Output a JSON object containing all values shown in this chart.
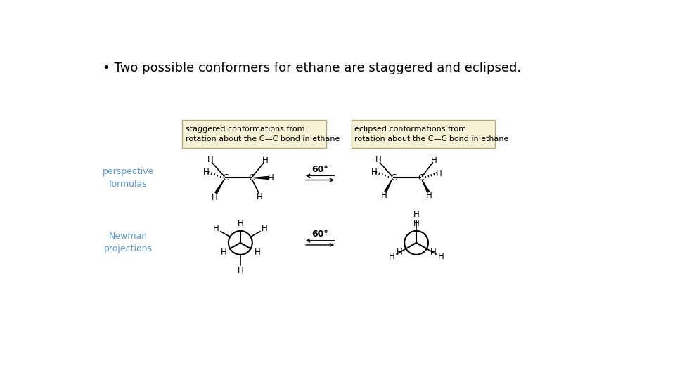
{
  "title_text": "Two possible conformers for ethane are staggered and eclipsed.",
  "title_bullet": "•",
  "bg_color": "#ffffff",
  "blue_color": "#5b9bd5",
  "box_bg": "#f5f2d5",
  "box_edge": "#b8a878",
  "box1_text": "staggered conformations from\nrotation about the C—C bond in ethane",
  "box2_text": "eclipsed conformations from\nrotation about the C—C bond in ethane",
  "label_perspective": "perspective\nformulas",
  "label_newman": "Newman\nprojections",
  "deg60": "60°"
}
